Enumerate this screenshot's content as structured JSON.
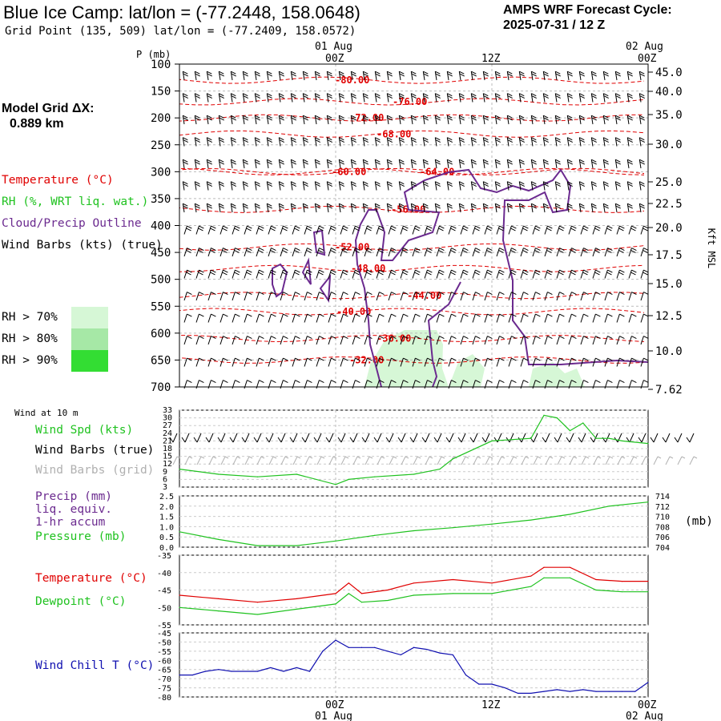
{
  "header": {
    "title": "Blue Ice Camp:  lat/lon = (-77.2448, 158.0648)",
    "grid_point": "Grid Point (135, 509) lat/lon = (-77.2409, 158.0572)",
    "cycle_line1": "AMPS WRF Forecast Cycle:",
    "cycle_line2": "2025-07-31 / 12  Z"
  },
  "model_grid": {
    "line1": "Model Grid ΔX:",
    "line2": "0.889 km"
  },
  "upper_legend": {
    "temperature": "Temperature (°C)",
    "rh": "RH (%, WRT liq. wat.)",
    "cloud": "Cloud/Precip Outline",
    "wind": "Wind Barbs (kts) (true)",
    "rh70": "RH > 70%",
    "rh80": "RH > 80%",
    "rh90": "RH > 90%"
  },
  "time_axis": {
    "top_date_left": "01 Aug",
    "top_date_right": "02 Aug",
    "ticks": [
      "00Z",
      "12Z",
      "00Z"
    ],
    "bottom_date_left": "01 Aug",
    "bottom_date_right": "02 Aug"
  },
  "panel_labels": {
    "pressure_axis": "P (mb)",
    "height_axis": "Kft MSL",
    "wind10": "Wind at 10 m",
    "wind_spd": "Wind Spd (kts)",
    "wind_barbs_true": "Wind Barbs (true)",
    "wind_barbs_grid": "Wind Barbs (grid)",
    "precip1": "Precip (mm)",
    "precip2": "liq. equiv.",
    "precip3": "1-hr accum",
    "pressure": "Pressure (mb)",
    "mb_unit": "(mb)",
    "temp": "Temperature (°C)",
    "dewpoint": "Dewpoint (°C)",
    "windchill": "Wind Chill T (°C)"
  },
  "colors": {
    "temperature": "#e00000",
    "rh": "#1fc21f",
    "cloud": "#6b2a8f",
    "wind": "#000000",
    "wind_grid": "#b0b0b0",
    "windchill": "#1010b0",
    "rh70": "#d6f7d6",
    "rh80": "#a6e8a6",
    "rh90": "#33dd33"
  },
  "chart_data": [
    {
      "type": "line",
      "title": "Upper-air cross section",
      "ylabel": "P (mb)",
      "yticks": [
        "100",
        "150",
        "200",
        "250",
        "300",
        "350",
        "400",
        "450",
        "500",
        "550",
        "600",
        "650",
        "700"
      ],
      "right_ticks": [
        "45.0",
        "40.0",
        "35.0",
        "30.0",
        "25.0",
        "22.5",
        "20.0",
        "17.5",
        "15.0",
        "12.5",
        "10.0",
        "7.62"
      ],
      "temperature_contours": [
        {
          "label": "-80.00",
          "p": 130
        },
        {
          "label": "-76.00",
          "p": 170
        },
        {
          "label": "-72.00",
          "p": 200
        },
        {
          "label": "-68.00",
          "p": 230
        },
        {
          "label": "-64.00",
          "p": 300
        },
        {
          "label": "-60.00",
          "p": 300
        },
        {
          "label": "-56.00",
          "p": 370
        },
        {
          "label": "-52.00",
          "p": 440
        },
        {
          "label": "-48.00",
          "p": 480
        },
        {
          "label": "-44.00",
          "p": 530
        },
        {
          "label": "-40.00",
          "p": 560
        },
        {
          "label": "-36.00",
          "p": 610
        },
        {
          "label": "-32.00",
          "p": 650
        }
      ]
    },
    {
      "type": "line",
      "name": "Wind Spd (kts)",
      "yticks": [
        "33",
        "30",
        "27",
        "24",
        "21",
        "18",
        "15",
        "12",
        "9",
        "6",
        "3"
      ],
      "ylim": [
        3,
        33
      ],
      "x": [
        -12,
        -9,
        -6,
        -3,
        0,
        1,
        3,
        6,
        7,
        8,
        9,
        12,
        15,
        16,
        17,
        18,
        19,
        20,
        21,
        22,
        24
      ],
      "values": [
        10,
        8,
        7,
        8,
        4,
        6,
        7,
        8,
        9,
        10,
        14,
        21,
        22,
        31,
        30,
        25,
        28,
        22,
        22,
        21,
        20
      ]
    },
    {
      "type": "line",
      "yticks_left": [
        "2.5",
        "2.0",
        "1.5",
        "1.0",
        "0.5",
        "0.0"
      ],
      "yticks_right": [
        "714",
        "712",
        "710",
        "708",
        "706",
        "704"
      ],
      "series": [
        {
          "name": "Pressure (mb)",
          "x": [
            -12,
            -9,
            -6,
            -3,
            0,
            3,
            6,
            9,
            12,
            15,
            18,
            21,
            24
          ],
          "values": [
            707,
            705.5,
            704.3,
            704.3,
            705.2,
            706.3,
            707.2,
            707.8,
            708.5,
            709.3,
            710.4,
            712,
            712.8
          ]
        }
      ]
    },
    {
      "type": "line",
      "yticks": [
        "-35",
        "-40",
        "-45",
        "-50",
        "-55"
      ],
      "ylim": [
        -55,
        -35
      ],
      "series": [
        {
          "name": "Temperature (°C)",
          "x": [
            -12,
            -9,
            -6,
            -3,
            0,
            1,
            2,
            4,
            6,
            9,
            12,
            15,
            16,
            18,
            20,
            22,
            24
          ],
          "values": [
            -46.5,
            -47.5,
            -48.5,
            -47.5,
            -46,
            -43,
            -46,
            -45,
            -43,
            -42,
            -43,
            -41,
            -38.5,
            -38.5,
            -42,
            -42.5,
            -42.5
          ]
        },
        {
          "name": "Dewpoint (°C)",
          "x": [
            -12,
            -9,
            -6,
            -3,
            0,
            1,
            2,
            4,
            6,
            9,
            12,
            15,
            16,
            18,
            20,
            22,
            24
          ],
          "values": [
            -50,
            -51,
            -52,
            -50.5,
            -49,
            -46,
            -48.5,
            -48,
            -46.5,
            -46,
            -46,
            -44,
            -41.5,
            -41.5,
            -45,
            -45.5,
            -45.5
          ]
        }
      ]
    },
    {
      "type": "line",
      "yticks": [
        "-45",
        "-50",
        "-55",
        "-60",
        "-65",
        "-70",
        "-75",
        "-80"
      ],
      "ylim": [
        -80,
        -45
      ],
      "series": [
        {
          "name": "Wind Chill T (°C)",
          "x": [
            -12,
            -11,
            -10,
            -9,
            -8,
            -6,
            -5,
            -4,
            -3,
            -2,
            -1,
            0,
            1,
            2,
            3,
            4,
            5,
            6,
            7,
            8,
            9,
            10,
            11,
            12,
            13,
            14,
            15,
            16,
            17,
            18,
            19,
            20,
            21,
            22,
            23,
            24
          ],
          "values": [
            -68,
            -68,
            -66,
            -65,
            -66,
            -66,
            -64,
            -66,
            -64,
            -66,
            -55,
            -49,
            -53,
            -53,
            -53,
            -55,
            -57,
            -53,
            -54,
            -56,
            -57,
            -68,
            -73,
            -73,
            -75,
            -78,
            -78,
            -77,
            -76,
            -77,
            -76,
            -77,
            -77,
            -77,
            -77,
            -72
          ]
        }
      ]
    }
  ]
}
